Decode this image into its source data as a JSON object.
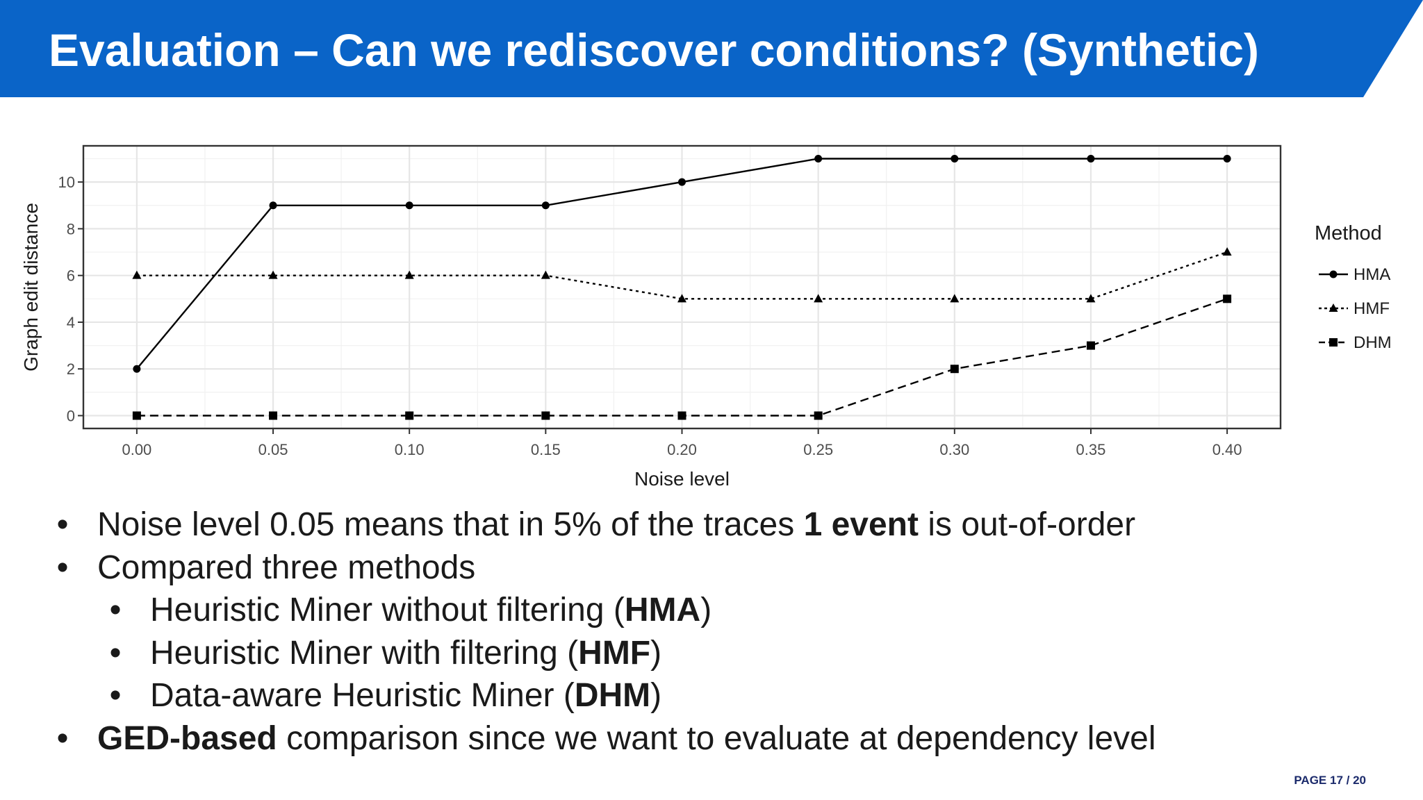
{
  "slide": {
    "title": "Evaluation – Can we rediscover conditions? (Synthetic)",
    "page_number": "PAGE 17 / 20"
  },
  "colors": {
    "banner": "#0a64c8",
    "text": "#1a1a1a",
    "page_number": "#1b2a6b"
  },
  "chart_data": {
    "type": "line",
    "x": [
      0.0,
      0.05,
      0.1,
      0.15,
      0.2,
      0.25,
      0.3,
      0.35,
      0.4
    ],
    "x_tick_labels": [
      "0.00",
      "0.05",
      "0.10",
      "0.15",
      "0.20",
      "0.25",
      "0.30",
      "0.35",
      "0.40"
    ],
    "y_ticks": [
      0,
      2,
      4,
      6,
      8,
      10
    ],
    "y_tick_labels": [
      "0",
      "2",
      "4",
      "6",
      "8",
      "10"
    ],
    "xlabel": "Noise level",
    "ylabel": "Graph edit distance",
    "xlim": [
      -0.0196,
      0.4196
    ],
    "ylim": [
      -0.55,
      11.55
    ],
    "grid": true,
    "legend_title": "Method",
    "legend_position": "right",
    "series": [
      {
        "name": "HMA",
        "line": "solid",
        "marker": "circle",
        "values": [
          2,
          9,
          9,
          9,
          10,
          11,
          11,
          11,
          11
        ]
      },
      {
        "name": "HMF",
        "line": "dotted",
        "marker": "triangle",
        "values": [
          6,
          6,
          6,
          6,
          5,
          5,
          5,
          5,
          7
        ]
      },
      {
        "name": "DHM",
        "line": "dashed",
        "marker": "square",
        "values": [
          0,
          0,
          0,
          0,
          0,
          0,
          2,
          3,
          5
        ]
      }
    ]
  },
  "bullets": [
    {
      "level": 1,
      "marker": "•",
      "parts": [
        {
          "text": "Noise level 0.05 means that in 5% of the traces ",
          "bold": false
        },
        {
          "text": "1 event",
          "bold": true
        },
        {
          "text": " is out-of-order",
          "bold": false
        }
      ]
    },
    {
      "level": 1,
      "marker": "•",
      "parts": [
        {
          "text": "Compared three methods",
          "bold": false
        }
      ]
    },
    {
      "level": 2,
      "marker": "•",
      "parts": [
        {
          "text": "Heuristic Miner without filtering (",
          "bold": false
        },
        {
          "text": "HMA",
          "bold": true
        },
        {
          "text": ")",
          "bold": false
        }
      ]
    },
    {
      "level": 2,
      "marker": "•",
      "parts": [
        {
          "text": "Heuristic Miner with filtering (",
          "bold": false
        },
        {
          "text": "HMF",
          "bold": true
        },
        {
          "text": ")",
          "bold": false
        }
      ]
    },
    {
      "level": 2,
      "marker": "•",
      "parts": [
        {
          "text": "Data-aware Heuristic Miner (",
          "bold": false
        },
        {
          "text": "DHM",
          "bold": true
        },
        {
          "text": ")",
          "bold": false
        }
      ]
    },
    {
      "level": 1,
      "marker": "•",
      "parts": [
        {
          "text": "GED-based",
          "bold": true
        },
        {
          "text": " comparison since we want to evaluate at dependency level",
          "bold": false
        }
      ]
    }
  ]
}
